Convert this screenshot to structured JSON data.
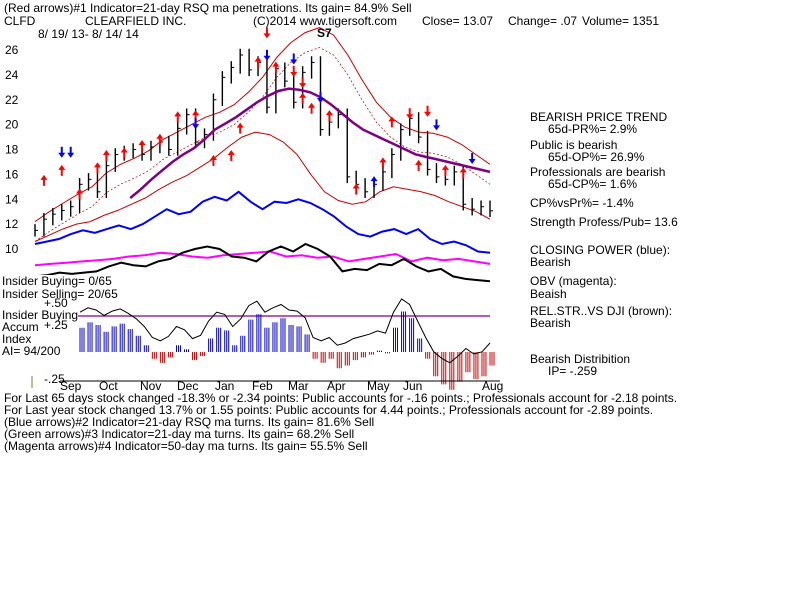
{
  "header": {
    "line1": "(Red arrows)#1 Indicator=21-day RSQ ma penetrations. Its gain= 84.9% Sell",
    "ticker": "CLFD",
    "company": "CLEARFIELD INC.",
    "copyright": "(C)2014 www.tigersoft.com",
    "close": "Close=  13.07",
    "change": "Change= .07",
    "volume": "Volume= 1351",
    "daterange": "8/ 19/ 13- 8/ 14/ 14"
  },
  "right_panel": {
    "trend_title": "BEARISH PRICE TREND",
    "pr": "65d-PR%= 2.9%",
    "public": "Public is bearish",
    "op": "65d-OP%= 26.9%",
    "prof": "Professionals are bearish",
    "cp": "65d-CP%= 1.6%",
    "cpvspr": "CP%vsPr%= -1.4%",
    "strength": "Strength Profess/Pub= 13.6",
    "closing_power": "CLOSING POWER (blue):",
    "cp_state": "Bearish",
    "obv": "OBV (magenta):",
    "obv_state": "Beaish",
    "relstr": "REL.STR..VS DJI (brown):",
    "relstr_state": "Bearish",
    "dist": "Bearish Distribition",
    "ip": "IP= -.259"
  },
  "left_labels": {
    "insider_buying": "Insider Buying= 0/65",
    "insider_selling": "Insider Selling= 20/65",
    "insider_buying2": "Insider Buying",
    "accum": "Accum",
    "index": "Index",
    "ai": "AI= 94/200",
    "p50": "+.50",
    "p25": "+.25",
    "m25": "-.25"
  },
  "signal_label": "S7",
  "footer": [
    "For Last 65 days stock changed -18.3% or -2.34 points:  Public accounts for -.16 points.;  Professionals account for -2.18 points.",
    "For Last year stock changed  13.7% or  1.55 points:  Public accounts for  4.44 points.;  Professionals account for -2.89 points.",
    "(Blue arrows)#2 Indicator=21-day RSQ ma turns. Its gain= 81.6% Sell",
    "(Green arrows)#3 Indicator=21-day ma turns. Its gain= 68.2% Sell",
    "(Magenta arrows)#4 Indicator=50-day ma turns. Its gain= 55.5% Sell"
  ],
  "colors": {
    "price": "#000000",
    "band": "#cc0000",
    "ma50": "#800080",
    "closing_power": "#0000ff",
    "obv": "#ff00ff",
    "relstr": "#000000",
    "accum_pos": "#0000cc",
    "accum_neg": "#cc0000",
    "up_arrow": "#ff0000",
    "down_arrow": "#0000ff"
  },
  "chart_data": {
    "type": "line",
    "ylim": [
      10,
      28
    ],
    "yticks": [
      10,
      12,
      14,
      16,
      18,
      20,
      22,
      24,
      26
    ],
    "months": [
      "Sep",
      "Oct",
      "Nov",
      "Dec",
      "Jan",
      "Feb",
      "Mar",
      "Apr",
      "May",
      "Jun",
      "Aug"
    ],
    "price": [
      11.5,
      12.4,
      12.8,
      13.1,
      13.4,
      15.2,
      15.6,
      14.6,
      16.7,
      17.6,
      17.8,
      18.0,
      17.6,
      18.2,
      18.6,
      18.0,
      19.7,
      20.8,
      18.6,
      19.2,
      22.0,
      23.8,
      24.6,
      25.6,
      24.4,
      25.0,
      21.4,
      24.5,
      23.5,
      21.8,
      24.2,
      25.0,
      19.6,
      20.2,
      20.8,
      15.8,
      15.2,
      14.6,
      15.2,
      16.2,
      17.6,
      19.6,
      20.5,
      19.0,
      16.4,
      15.8,
      15.6,
      16.2,
      13.6,
      13.2,
      13.4,
      13.07
    ],
    "ma50": [
      null,
      null,
      null,
      null,
      null,
      null,
      null,
      null,
      null,
      14.1,
      14.8,
      15.6,
      16.3,
      17.0,
      17.6,
      18.1,
      18.8,
      19.6,
      20.1,
      20.6,
      21.2,
      21.8,
      22.3,
      22.7,
      22.9,
      22.8,
      22.6,
      22.2,
      21.6,
      20.9,
      20.2,
      19.6,
      19.2,
      18.8,
      18.4,
      18.0,
      17.6,
      17.4,
      17.2,
      17.0,
      16.8,
      16.6,
      16.4,
      16.2
    ],
    "band_upper": [
      12.2,
      13.0,
      13.7,
      14.4,
      15.0,
      16.1,
      16.8,
      17.3,
      17.9,
      18.8,
      19.4,
      20.0,
      20.6,
      21.0,
      21.6,
      22.6,
      23.8,
      25.4,
      26.6,
      27.4,
      27.8,
      27.2,
      25.6,
      23.6,
      21.8,
      20.6,
      19.8,
      19.4,
      19.3,
      19.0,
      18.4,
      17.6,
      16.8
    ],
    "band_lower": [
      10.6,
      11.1,
      11.6,
      12.0,
      12.2,
      12.7,
      13.1,
      13.6,
      14.1,
      14.8,
      15.4,
      15.9,
      16.6,
      17.3,
      18.2,
      19.0,
      19.4,
      19.2,
      18.6,
      17.6,
      16.0,
      14.6,
      13.9,
      13.6,
      13.8,
      14.6,
      15.0,
      14.8,
      14.6,
      14.3,
      13.8,
      13.4,
      13.0,
      12.4
    ],
    "closing_power": [
      10.4,
      10.6,
      10.8,
      11.2,
      11.5,
      11.3,
      11.6,
      11.9,
      11.6,
      12.0,
      12.6,
      13.2,
      12.8,
      13.0,
      13.8,
      14.2,
      13.9,
      14.6,
      13.8,
      13.2,
      13.8,
      13.7,
      14.0,
      13.7,
      13.2,
      12.6,
      11.8,
      11.2,
      11.0,
      11.4,
      11.6,
      11.2,
      11.6,
      10.8,
      10.4,
      10.6,
      10.3,
      9.8,
      9.7
    ],
    "obv": [
      8.7,
      8.8,
      8.9,
      9.0,
      9.1,
      9.2,
      9.4,
      9.5,
      9.7,
      9.6,
      9.4,
      9.3,
      9.5,
      9.6,
      9.7,
      9.8,
      9.4,
      9.5,
      9.3,
      9.4,
      9.0,
      9.2,
      9.4,
      9.6,
      9.0,
      9.3,
      9.1,
      9.2,
      9.0,
      8.8
    ],
    "relstr": [
      7.8,
      7.9,
      8.1,
      8.0,
      8.1,
      8.2,
      8.6,
      8.9,
      8.7,
      8.6,
      9.0,
      9.2,
      9.7,
      10.0,
      10.2,
      10.0,
      9.4,
      9.3,
      9.0,
      9.8,
      10.2,
      9.8,
      10.4,
      10.0,
      9.4,
      8.2,
      8.4,
      8.3,
      8.8,
      8.7,
      9.2,
      8.6,
      8.2,
      8.4,
      7.8,
      7.6,
      7.5,
      7.4
    ],
    "accum": [
      0.18,
      0.22,
      0.2,
      0.15,
      0.19,
      0.21,
      0.17,
      0.12,
      0.05,
      -0.05,
      -0.08,
      -0.04,
      0.05,
      0.02,
      -0.06,
      -0.03,
      0.1,
      0.18,
      0.16,
      0.05,
      0.12,
      0.24,
      0.28,
      0.18,
      0.22,
      0.25,
      0.2,
      0.19,
      0.13,
      -0.05,
      -0.08,
      -0.05,
      -0.12,
      -0.1,
      -0.06,
      -0.04,
      -0.02,
      0.01,
      -0.01,
      0.18,
      0.3,
      0.25,
      0.1,
      -0.05,
      -0.18,
      -0.24,
      -0.28,
      -0.22,
      -0.15,
      -0.2,
      -0.18,
      -0.1
    ],
    "arrows_red_up": [
      [
        1,
        15.4
      ],
      [
        3,
        16.2
      ],
      [
        5,
        14.3
      ],
      [
        7,
        16.4
      ],
      [
        8,
        17.4
      ],
      [
        10,
        17.6
      ],
      [
        12,
        18.2
      ],
      [
        14,
        18.7
      ],
      [
        16,
        20.5
      ],
      [
        18,
        20.6
      ],
      [
        20,
        17.0
      ],
      [
        22,
        17.4
      ],
      [
        23,
        19.6
      ],
      [
        25,
        24.9
      ],
      [
        27,
        24.5
      ],
      [
        30,
        22.0
      ],
      [
        31,
        21.2
      ],
      [
        33,
        20.6
      ],
      [
        36,
        14.7
      ],
      [
        39,
        16.8
      ],
      [
        40,
        20.1
      ],
      [
        43,
        16.6
      ],
      [
        46,
        16.2
      ],
      [
        48,
        16.0
      ]
    ],
    "arrows_red_down": [
      [
        26,
        27.5
      ],
      [
        29,
        24.4
      ],
      [
        30,
        23.5
      ],
      [
        42,
        21.0
      ],
      [
        44,
        21.2
      ]
    ],
    "arrows_blue_down": [
      [
        3,
        17.9
      ],
      [
        4,
        17.9
      ],
      [
        18,
        20.2
      ],
      [
        26,
        25.7
      ],
      [
        29,
        25.4
      ],
      [
        32,
        22.3
      ],
      [
        45,
        20.1
      ],
      [
        49,
        17.4
      ]
    ],
    "arrows_blue_up": [
      [
        38,
        15.3
      ]
    ]
  }
}
